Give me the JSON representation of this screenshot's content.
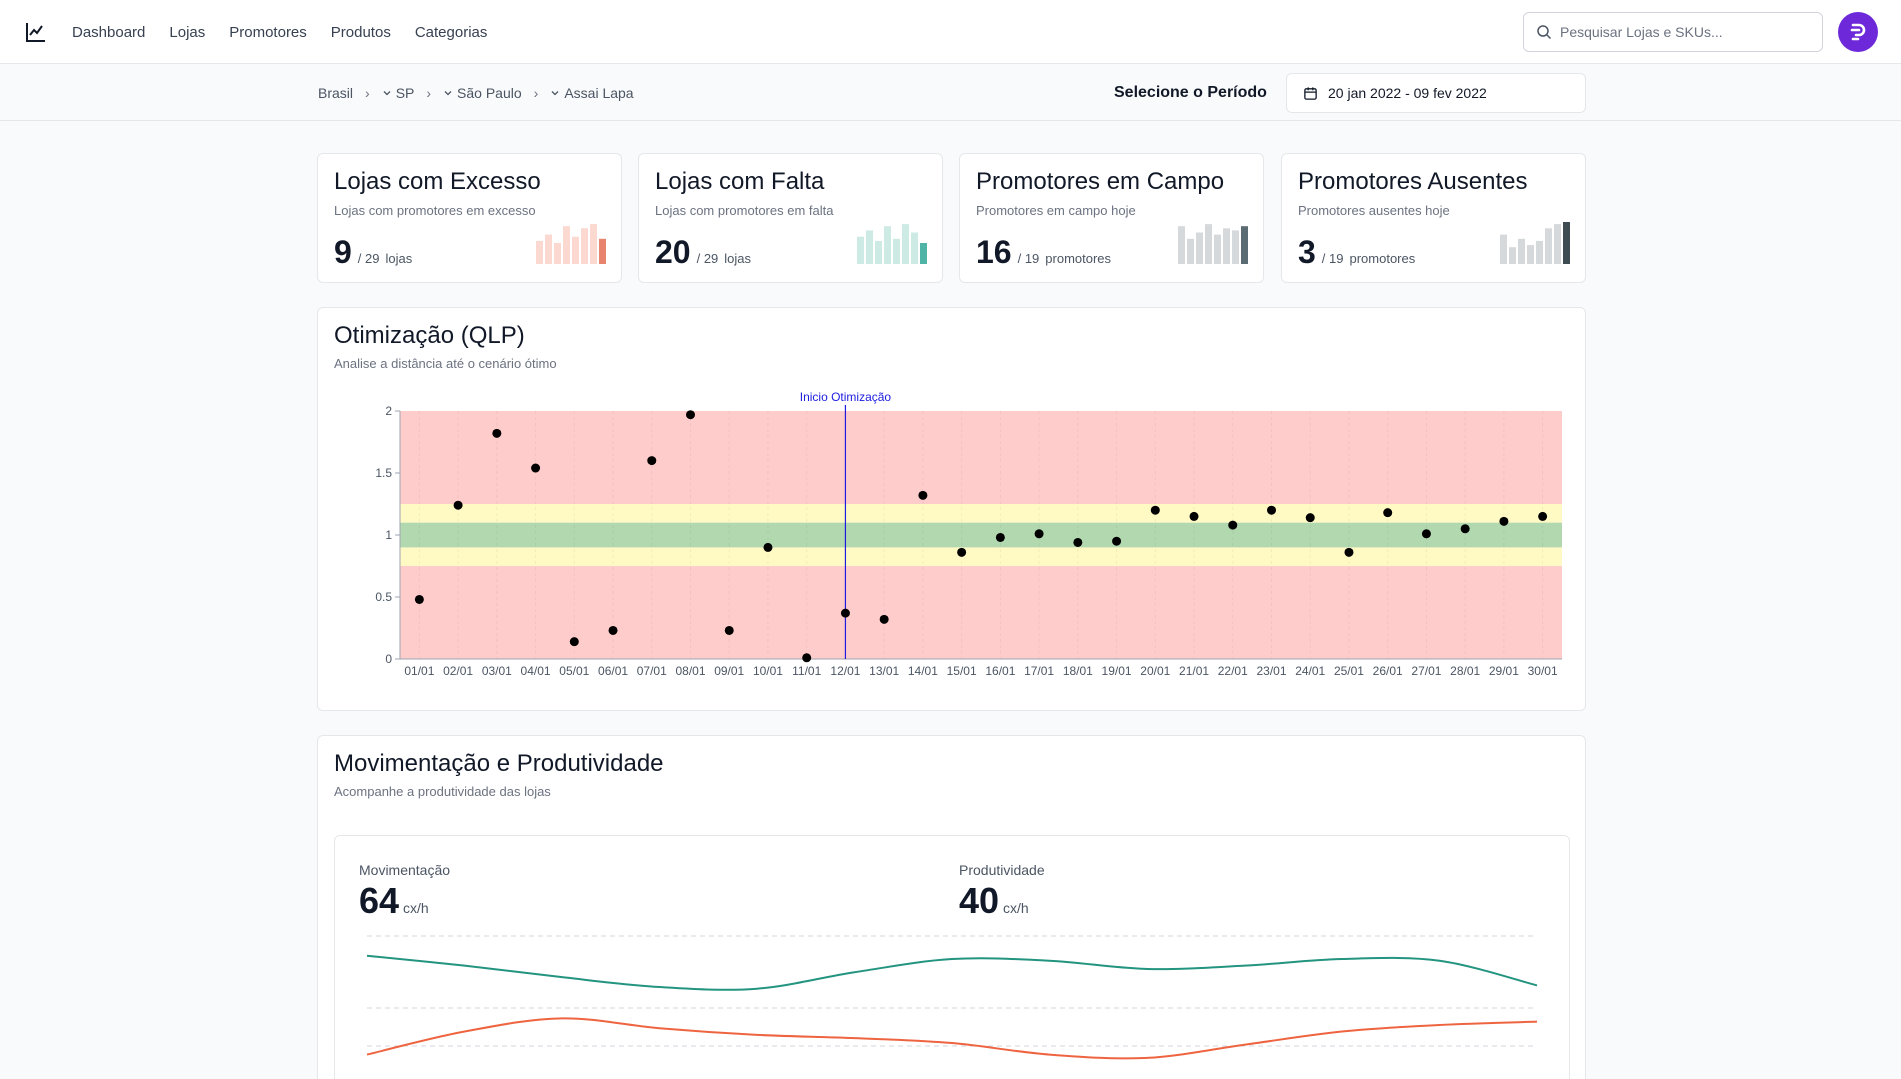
{
  "nav": {
    "logo_icon": "line-chart-icon",
    "links": [
      "Dashboard",
      "Lojas",
      "Promotores",
      "Produtos",
      "Categorias"
    ],
    "search_placeholder": "Pesquisar Lojas e SKUs...",
    "avatar_color": "#6d28d9"
  },
  "breadcrumb": [
    "Brasil",
    "SP",
    "São Paulo",
    "Assai Lapa"
  ],
  "period": {
    "label": "Selecione o Período",
    "value": "20 jan 2022 - 09 fev 2022"
  },
  "kpis": [
    {
      "title": "Lojas com Excesso",
      "subtitle": "Lojas com promotores em excesso",
      "value": "9",
      "total": "/ 29",
      "unit": "lojas",
      "accent": "#e8836d",
      "light": "#fbd9d0",
      "bars": [
        0.55,
        0.7,
        0.5,
        0.9,
        0.65,
        0.85,
        0.95,
        0.6
      ]
    },
    {
      "title": "Lojas com Falta",
      "subtitle": "Lojas com promotores em falta",
      "value": "20",
      "total": "/ 29",
      "unit": "lojas",
      "accent": "#4fb3a6",
      "light": "#cdeae5",
      "bars": [
        0.65,
        0.8,
        0.55,
        0.9,
        0.6,
        0.95,
        0.75,
        0.5
      ]
    },
    {
      "title": "Promotores em Campo",
      "subtitle": "Promotores em campo hoje",
      "value": "16",
      "total": "/ 19",
      "unit": "promotores",
      "accent": "#5b6b73",
      "light": "#d6d9dc",
      "bars": [
        0.9,
        0.6,
        0.75,
        0.95,
        0.7,
        0.85,
        0.8,
        0.9
      ]
    },
    {
      "title": "Promotores Ausentes",
      "subtitle": "Promotores ausentes hoje",
      "value": "3",
      "total": "/ 19",
      "unit": "promotores",
      "accent": "#3e4c54",
      "light": "#d6d9dc",
      "bars": [
        0.7,
        0.4,
        0.6,
        0.45,
        0.55,
        0.85,
        0.95,
        1.0
      ]
    }
  ],
  "qlp": {
    "title": "Otimização (QLP)",
    "subtitle": "Analise a distância até o cenário ótimo",
    "marker_label": "Inicio Otimização"
  },
  "chart_data": [
    {
      "type": "scatter",
      "title": "Otimização (QLP)",
      "categories": [
        "01/01",
        "02/01",
        "03/01",
        "04/01",
        "05/01",
        "06/01",
        "07/01",
        "08/01",
        "09/01",
        "10/01",
        "11/01",
        "12/01",
        "13/01",
        "14/01",
        "15/01",
        "16/01",
        "17/01",
        "18/01",
        "19/01",
        "20/01",
        "21/01",
        "22/01",
        "23/01",
        "24/01",
        "25/01",
        "26/01",
        "27/01",
        "28/01",
        "29/01",
        "30/01"
      ],
      "values": [
        0.48,
        1.24,
        1.82,
        1.54,
        0.14,
        0.23,
        1.6,
        1.97,
        0.23,
        0.9,
        0.01,
        0.37,
        0.32,
        1.32,
        0.86,
        0.98,
        1.01,
        0.94,
        0.95,
        1.2,
        1.15,
        1.08,
        1.2,
        1.14,
        0.86,
        1.18,
        1.01,
        1.05,
        1.11,
        1.15
      ],
      "ylim": [
        0,
        2
      ],
      "yticks": [
        "0",
        "0.5",
        "1",
        "1.5",
        "2"
      ],
      "bands": [
        {
          "from": 0,
          "to": 0.75,
          "color": "#ffcccc"
        },
        {
          "from": 0.75,
          "to": 0.9,
          "color": "#fff9c4"
        },
        {
          "from": 0.9,
          "to": 1.1,
          "color": "#b2d8b0"
        },
        {
          "from": 1.1,
          "to": 1.25,
          "color": "#fff9c4"
        },
        {
          "from": 1.25,
          "to": 2,
          "color": "#ffcccc"
        }
      ],
      "marker_x": "12/01",
      "marker_label": "Inicio Otimização",
      "grid": true
    },
    {
      "type": "line",
      "title": "Movimentação e Produtividade",
      "x": [
        0,
        1,
        2,
        3,
        4,
        5,
        6,
        7,
        8,
        9,
        10,
        11,
        12
      ],
      "series": [
        {
          "values": [
            98,
            92,
            85,
            79,
            78,
            88,
            96,
            95,
            90,
            92,
            96,
            95,
            80
          ],
          "color": "#23947f"
        },
        {
          "values": [
            38,
            52,
            60,
            54,
            50,
            48,
            45,
            38,
            36,
            44,
            52,
            56,
            58
          ],
          "color": "#ee6440"
        }
      ],
      "ylim": [
        25,
        110
      ]
    }
  ],
  "movimentacao": {
    "title": "Movimentação e Produtividade",
    "subtitle": "Acompanhe a produtividade das lojas",
    "metrics": [
      {
        "label": "Movimentação",
        "value": "64",
        "unit": "cx/h"
      },
      {
        "label": "Produtividade",
        "value": "40",
        "unit": "cx/h"
      }
    ]
  }
}
